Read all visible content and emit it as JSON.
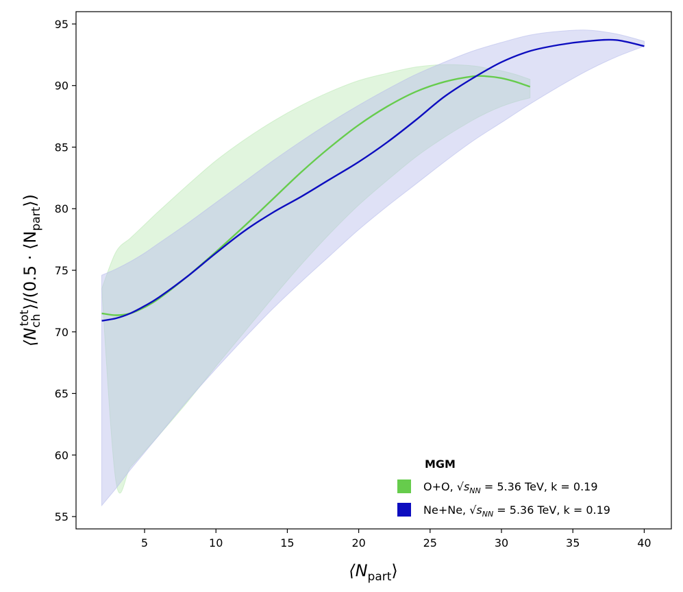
{
  "chart_data": {
    "type": "line",
    "xlabel_main": "⟨N",
    "xlabel_sub": "part",
    "xlabel_close": "⟩",
    "ylabel_main": "⟨N",
    "ylabel_sub": "ch",
    "ylabel_sup": "tot",
    "ylabel_rest": "⟩/(0.5 · ⟨N",
    "ylabel_sub2": "part",
    "ylabel_close": "⟩)",
    "xlim": [
      0.2,
      41.9
    ],
    "ylim": [
      54,
      96
    ],
    "xticks": [
      5,
      10,
      15,
      20,
      25,
      30,
      35,
      40
    ],
    "yticks": [
      55,
      60,
      65,
      70,
      75,
      80,
      85,
      90,
      95
    ],
    "legend": {
      "title": "MGM",
      "position": "bottom-right"
    },
    "series": [
      {
        "name": "O+O",
        "label_prefix": "O+O, ",
        "label_sqrt": "√s",
        "label_sub": "NN",
        "label_suffix": " = 5.36 TeV, k = 0.19",
        "color": "#66cc4c",
        "band_color": "#bde9b6",
        "x": [
          2,
          3,
          4,
          5,
          6,
          8,
          10,
          12,
          14,
          16,
          18,
          20,
          22,
          24,
          26,
          28,
          29,
          30,
          31,
          32
        ],
        "y": [
          71.5,
          71.35,
          71.5,
          72.0,
          72.7,
          74.5,
          76.5,
          78.6,
          80.8,
          83.0,
          85.0,
          86.8,
          88.3,
          89.5,
          90.3,
          90.75,
          90.75,
          90.6,
          90.3,
          89.9
        ],
        "lower": [
          73.5,
          57.8,
          59.0,
          60.3,
          61.6,
          64.3,
          67.2,
          70.0,
          72.8,
          75.5,
          78.0,
          80.3,
          82.3,
          84.2,
          85.8,
          87.2,
          87.8,
          88.3,
          88.7,
          89.0
        ],
        "upper": [
          73.5,
          76.5,
          77.6,
          78.7,
          79.8,
          81.9,
          83.9,
          85.6,
          87.1,
          88.4,
          89.5,
          90.4,
          91.0,
          91.5,
          91.7,
          91.6,
          91.4,
          91.2,
          90.9,
          90.5
        ]
      },
      {
        "name": "Ne+Ne",
        "label_prefix": "Ne+Ne, ",
        "label_sqrt": "√s",
        "label_sub": "NN",
        "label_suffix": " = 5.36 TeV, k = 0.19",
        "color": "#0d0dbf",
        "band_color": "#b8bdeb",
        "x": [
          2,
          3,
          4,
          5,
          6,
          8,
          10,
          12,
          14,
          16,
          18,
          20,
          22,
          24,
          26,
          28,
          30,
          32,
          34,
          36,
          38,
          40
        ],
        "y": [
          70.9,
          71.1,
          71.5,
          72.1,
          72.8,
          74.5,
          76.4,
          78.2,
          79.7,
          81.0,
          82.4,
          83.8,
          85.4,
          87.2,
          89.1,
          90.6,
          91.9,
          92.8,
          93.3,
          93.6,
          93.7,
          93.2
        ],
        "lower": [
          55.9,
          57.3,
          58.8,
          60.2,
          61.6,
          64.4,
          67.0,
          69.5,
          71.9,
          74.1,
          76.2,
          78.3,
          80.2,
          82.0,
          83.8,
          85.5,
          87.0,
          88.5,
          89.9,
          91.2,
          92.3,
          93.2
        ],
        "upper": [
          74.6,
          75.1,
          75.7,
          76.4,
          77.2,
          78.8,
          80.5,
          82.2,
          83.9,
          85.5,
          87.0,
          88.4,
          89.7,
          90.9,
          91.9,
          92.8,
          93.5,
          94.1,
          94.4,
          94.5,
          94.2,
          93.6
        ]
      }
    ]
  }
}
